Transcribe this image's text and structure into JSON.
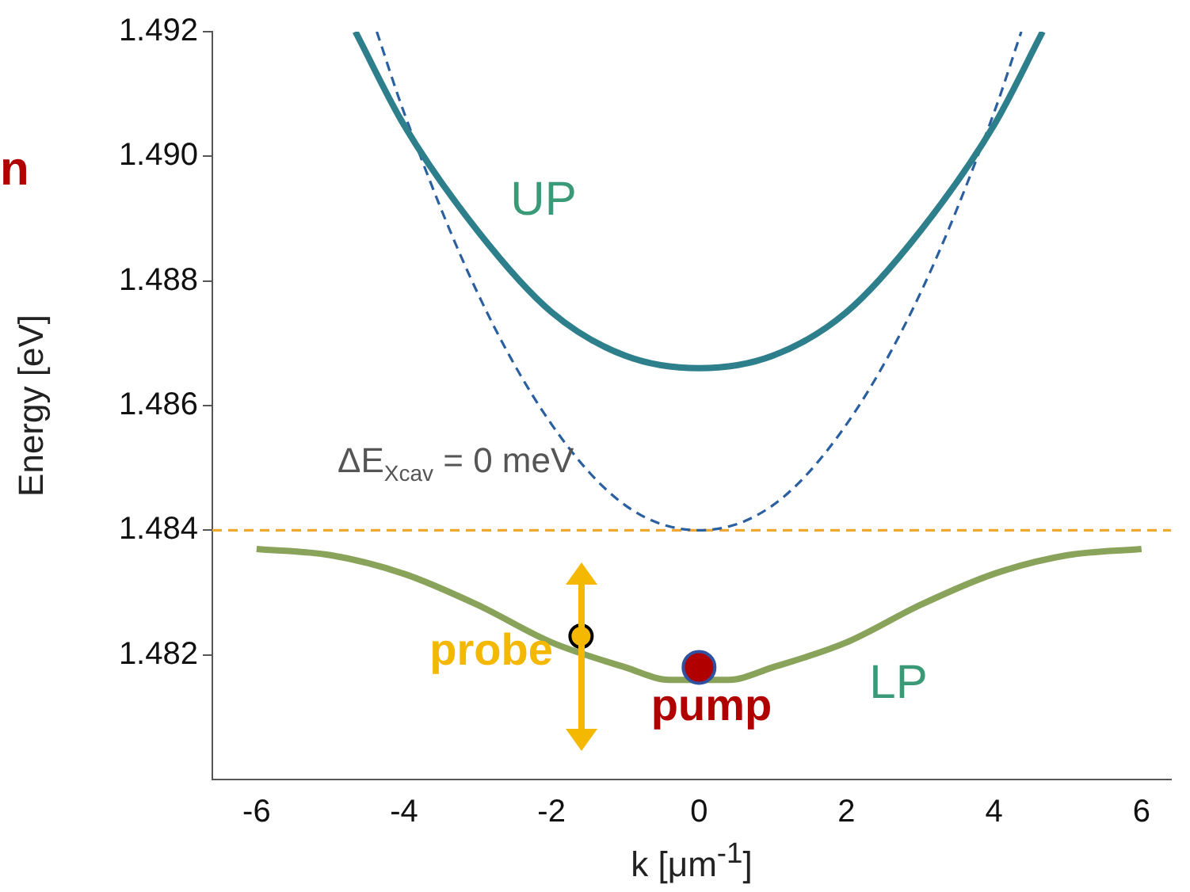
{
  "chart_data": {
    "type": "line",
    "xlabel": "k [μm$^{-1}$]",
    "ylabel": "Energy [eV]",
    "xlim": [
      -6.6,
      6.4
    ],
    "xticks": [
      -6,
      -4,
      -2,
      0,
      2,
      4,
      6
    ],
    "ylim": [
      1.48,
      1.492
    ],
    "yticks": [
      1.482,
      1.484,
      1.486,
      1.488,
      {
        "value": 1.49,
        "label": "1.490"
      },
      1.492
    ],
    "grid": false,
    "legend": false,
    "marker": "none",
    "series": [
      {
        "type": "line",
        "color": "#2e7f8c",
        "line_style": "solid",
        "x": [
          -4.66,
          -4,
          -3,
          -2,
          -1,
          0,
          1,
          2,
          3,
          4,
          4.66
        ],
        "values": [
          1.492,
          1.4905,
          1.4888,
          1.4875,
          1.4868,
          1.4866,
          1.4868,
          1.4875,
          1.4888,
          1.4905,
          1.492
        ]
      },
      {
        "type": "line",
        "color": "#2a5fa0",
        "line_style": "dashed",
        "x": [
          -4.37,
          -4,
          -3,
          -2,
          -1,
          0,
          1,
          2,
          3,
          4,
          4.37
        ],
        "values": [
          1.492,
          1.4907,
          1.4878,
          1.4857,
          1.4844,
          1.484,
          1.4844,
          1.4857,
          1.4878,
          1.4907,
          1.492
        ]
      },
      {
        "type": "line",
        "color": "#8aa35a",
        "line_style": "solid",
        "x": [
          -6,
          -5,
          -4,
          -3,
          -2,
          -1,
          -0.4,
          0.4,
          1,
          2,
          3,
          4,
          5,
          6
        ],
        "values": [
          1.4837,
          1.4836,
          1.4833,
          1.4828,
          1.4822,
          1.4818,
          1.4816,
          1.4816,
          1.4818,
          1.4822,
          1.4828,
          1.4833,
          1.4836,
          1.4837
        ]
      },
      {
        "type": "scatter",
        "color": "#f5b800",
        "marker": "circle",
        "x": [
          -1.6
        ],
        "values": [
          1.4823
        ]
      },
      {
        "type": "scatter",
        "color": "#b00000",
        "marker": "circle",
        "x": [
          0
        ],
        "values": [
          1.4818
        ]
      }
    ],
    "ref_lines": [
      {
        "axis": "y",
        "value": 1.484,
        "color": "#f0a830",
        "line_style": "dashed"
      }
    ],
    "annotations": [
      "n",
      "UP",
      "LP",
      "probe",
      "pump",
      "ΔE$_{Xcav}$ = 0 meV"
    ]
  }
}
